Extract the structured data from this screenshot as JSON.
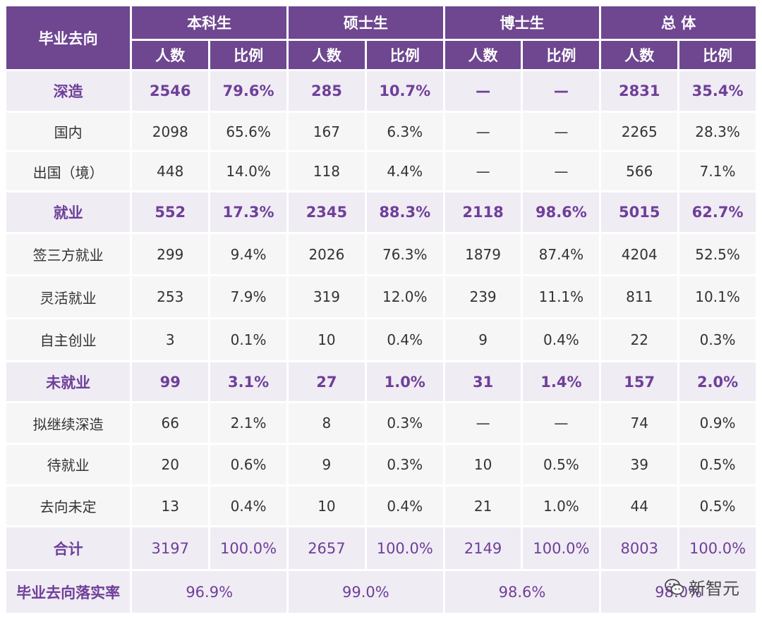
{
  "header": {
    "row_label": "毕业去向",
    "groups": [
      "本科生",
      "硕士生",
      "博士生",
      "总 体"
    ],
    "subcols": [
      "人数",
      "比例"
    ]
  },
  "rows": [
    {
      "type": "cat",
      "label": "深造",
      "cells": [
        "2546",
        "79.6%",
        "285",
        "10.7%",
        "—",
        "—",
        "2831",
        "35.4%"
      ]
    },
    {
      "type": "sub",
      "label": "国内",
      "cells": [
        "2098",
        "65.6%",
        "167",
        "6.3%",
        "—",
        "—",
        "2265",
        "28.3%"
      ]
    },
    {
      "type": "sub",
      "label": "出国（境）",
      "cells": [
        "448",
        "14.0%",
        "118",
        "4.4%",
        "—",
        "—",
        "566",
        "7.1%"
      ]
    },
    {
      "type": "cat",
      "label": "就业",
      "cells": [
        "552",
        "17.3%",
        "2345",
        "88.3%",
        "2118",
        "98.6%",
        "5015",
        "62.7%"
      ]
    },
    {
      "type": "sub",
      "label": "签三方就业",
      "cells": [
        "299",
        "9.4%",
        "2026",
        "76.3%",
        "1879",
        "87.4%",
        "4204",
        "52.5%"
      ]
    },
    {
      "type": "sub",
      "label": "灵活就业",
      "cells": [
        "253",
        "7.9%",
        "319",
        "12.0%",
        "239",
        "11.1%",
        "811",
        "10.1%"
      ]
    },
    {
      "type": "sub",
      "label": "自主创业",
      "cells": [
        "3",
        "0.1%",
        "10",
        "0.4%",
        "9",
        "0.4%",
        "22",
        "0.3%"
      ]
    },
    {
      "type": "cat",
      "label": "未就业",
      "cells": [
        "99",
        "3.1%",
        "27",
        "1.0%",
        "31",
        "1.4%",
        "157",
        "2.0%"
      ]
    },
    {
      "type": "sub",
      "label": "拟继续深造",
      "cells": [
        "66",
        "2.1%",
        "8",
        "0.3%",
        "—",
        "—",
        "74",
        "0.9%"
      ]
    },
    {
      "type": "sub",
      "label": "待就业",
      "cells": [
        "20",
        "0.6%",
        "9",
        "0.3%",
        "10",
        "0.5%",
        "39",
        "0.5%"
      ]
    },
    {
      "type": "sub",
      "label": "去向未定",
      "cells": [
        "13",
        "0.4%",
        "10",
        "0.4%",
        "21",
        "1.0%",
        "44",
        "0.5%"
      ]
    },
    {
      "type": "total",
      "label": "合计",
      "cells": [
        "3197",
        "100.0%",
        "2657",
        "100.0%",
        "2149",
        "100.0%",
        "8003",
        "100.0%"
      ]
    }
  ],
  "rate_row": {
    "label": "毕业去向落实率",
    "cells": [
      "96.9%",
      "99.0%",
      "98.6%",
      "98.0%"
    ]
  },
  "watermark": {
    "text": "新智元",
    "icon": "wechat-icon"
  }
}
